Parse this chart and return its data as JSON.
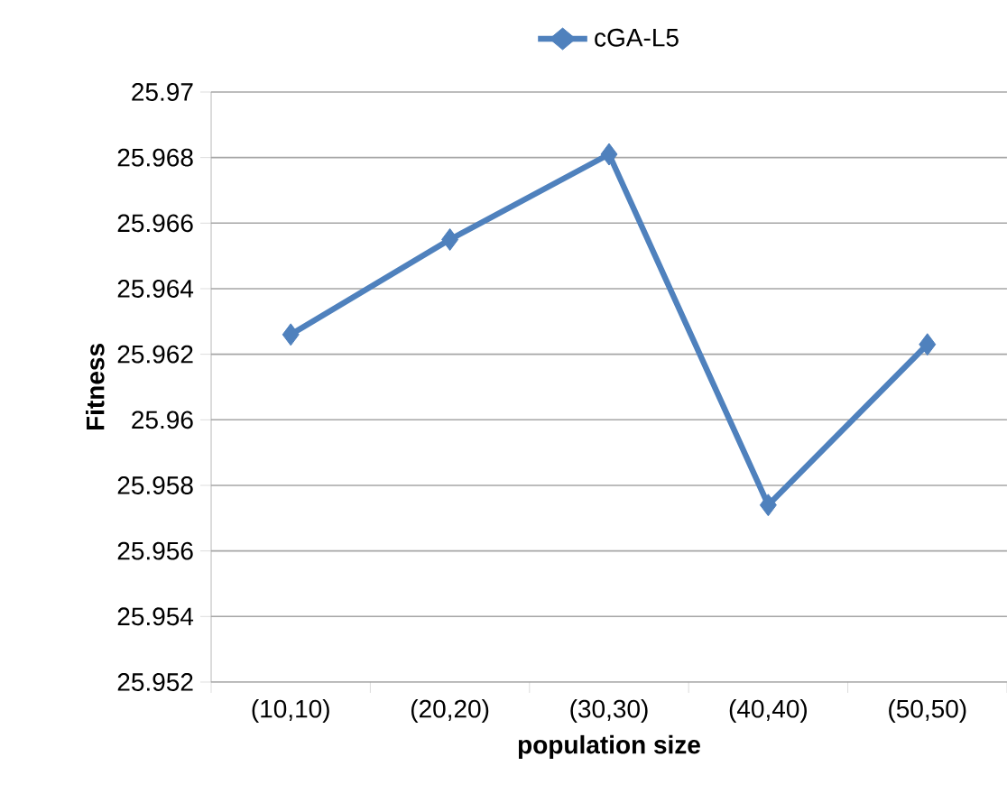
{
  "chart_data": {
    "type": "line",
    "xlabel": "population size",
    "ylabel": "Fitness",
    "categories": [
      "(10,10)",
      "(20,20)",
      "(30,30)",
      "(40,40)",
      "(50,50)"
    ],
    "series": [
      {
        "name": "cGA-L5",
        "color": "#4f81bd",
        "values": [
          25.9626,
          25.9655,
          25.9681,
          25.9574,
          25.9623
        ]
      }
    ],
    "ylim": [
      25.952,
      25.97
    ],
    "yticks": [
      25.952,
      25.954,
      25.956,
      25.958,
      25.96,
      25.962,
      25.964,
      25.966,
      25.968,
      25.97
    ],
    "grid": "y",
    "legend": "top",
    "marker": "diamond",
    "line_style": "solid"
  }
}
